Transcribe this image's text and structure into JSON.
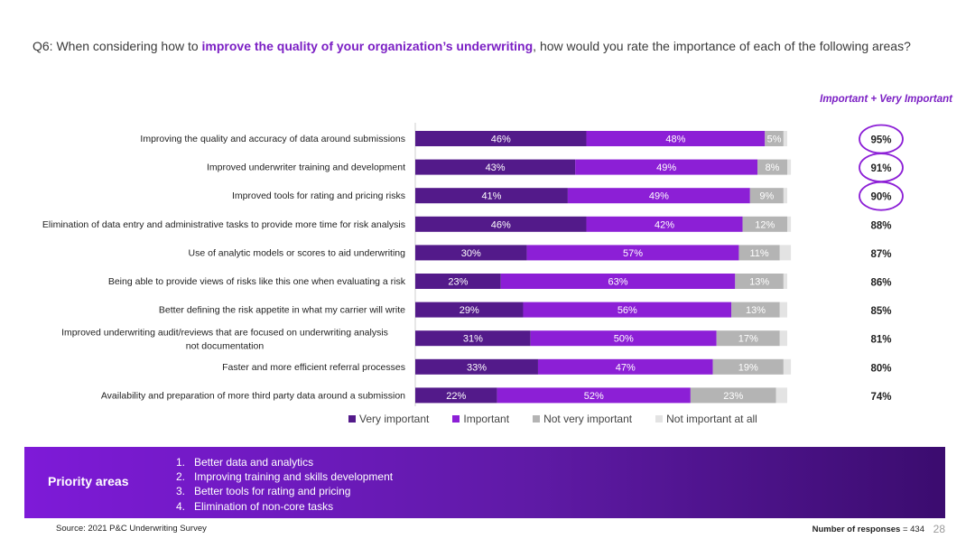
{
  "question": {
    "prefix": "Q6: When considering how to ",
    "highlight": "improve the quality of your organization’s underwriting",
    "suffix": ", how would you rate the importance of each of the following areas?"
  },
  "summary_header": "Important + Very Important",
  "chart_data": {
    "type": "bar",
    "orientation": "horizontal",
    "stacked": true,
    "categories": [
      "Improving the quality and accuracy of data around submissions",
      "Improved underwriter training and development",
      "Improved tools for rating and pricing risks",
      "Elimination of data entry and administrative tasks to provide more time for risk analysis",
      "Use of analytic models or scores to aid underwriting",
      "Being able to provide views of risks like this one when evaluating a risk",
      "Better defining the risk appetite in what my carrier will write",
      "Improved underwriting audit/reviews that are focused on underwriting analysis not documentation",
      "Faster and more efficient referral processes",
      "Availability and preparation of more third party data around a submission"
    ],
    "series": [
      {
        "name": "Very important",
        "color": "#531a8a",
        "label_color": "#ffffff",
        "values": [
          46,
          43,
          41,
          46,
          30,
          23,
          29,
          31,
          33,
          22
        ]
      },
      {
        "name": "Important",
        "color": "#8c1fd6",
        "label_color": "#ffffff",
        "values": [
          48,
          49,
          49,
          42,
          57,
          63,
          56,
          50,
          47,
          52
        ]
      },
      {
        "name": "Not very important",
        "color": "#b4b4b4",
        "label_color": "#ffffff",
        "values": [
          5,
          8,
          9,
          12,
          11,
          13,
          13,
          17,
          19,
          23
        ]
      },
      {
        "name": "Not important at all",
        "color": "#e3e3e3",
        "label_color": "#666666",
        "values": [
          1,
          1,
          1,
          1,
          3,
          1,
          2,
          2,
          2,
          3
        ]
      }
    ],
    "labels": [
      [
        "46%",
        "48%",
        "5%",
        ""
      ],
      [
        "43%",
        "49%",
        "8%",
        ""
      ],
      [
        "41%",
        "49%",
        "9%",
        ""
      ],
      [
        "46%",
        "42%",
        "12%",
        ""
      ],
      [
        "30%",
        "57%",
        "11%",
        ""
      ],
      [
        "23%",
        "63%",
        "13%",
        ""
      ],
      [
        "29%",
        "56%",
        "13%",
        ""
      ],
      [
        "31%",
        "50%",
        "17%",
        ""
      ],
      [
        "33%",
        "47%",
        "19%",
        ""
      ],
      [
        "22%",
        "52%",
        "23%",
        ""
      ]
    ],
    "xlim": [
      0,
      100
    ],
    "summary": [
      "95%",
      "91%",
      "90%",
      "88%",
      "87%",
      "86%",
      "85%",
      "81%",
      "80%",
      "74%"
    ],
    "highlighted_summary": [
      true,
      true,
      true,
      false,
      false,
      false,
      false,
      false,
      false,
      false
    ],
    "highlight_color": "#8c1fd6",
    "legend_position": "bottom"
  },
  "priority": {
    "title": "Priority areas",
    "items": [
      {
        "num": "1.",
        "text": "Better data and analytics"
      },
      {
        "num": "2.",
        "text": "Improving training and skills development"
      },
      {
        "num": "3.",
        "text": "Better tools for rating and pricing"
      },
      {
        "num": "4.",
        "text": "Elimination of non-core tasks"
      }
    ]
  },
  "footer": {
    "source": "Source: 2021 P&C Underwriting Survey",
    "responses_label": "Number of responses",
    "responses_value": "= 434",
    "page_number": "28"
  }
}
